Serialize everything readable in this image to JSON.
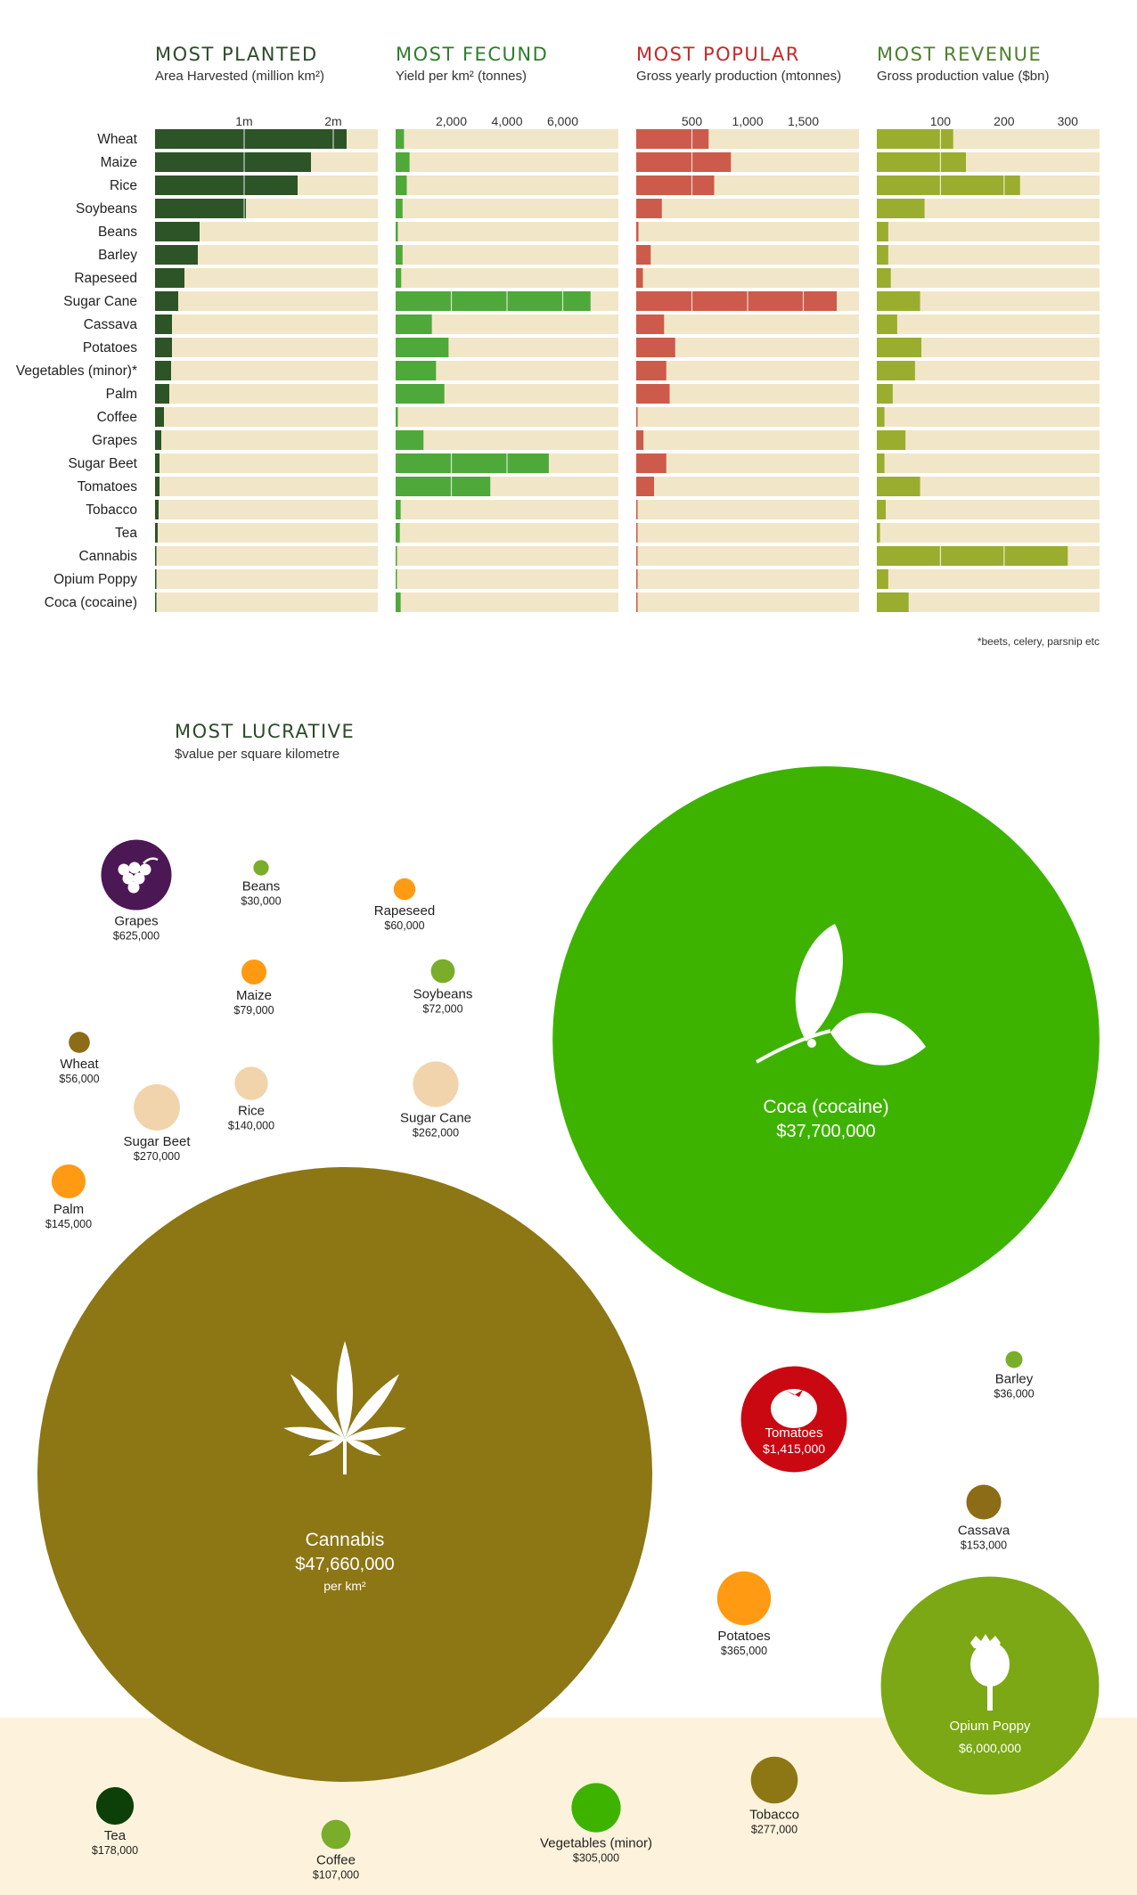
{
  "chart_data": [
    {
      "type": "bar",
      "orientation": "horizontal",
      "title": "MOST PLANTED",
      "subtitle": "Area Harvested (million km²)",
      "categories": [
        "Wheat",
        "Maize",
        "Rice",
        "Soybeans",
        "Beans",
        "Barley",
        "Rapeseed",
        "Sugar Cane",
        "Cassava",
        "Potatoes",
        "Vegetables (minor)*",
        "Palm",
        "Coffee",
        "Grapes",
        "Sugar Beet",
        "Tomatoes",
        "Tobacco",
        "Tea",
        "Cannabis",
        "Opium Poppy",
        "Coca (cocaine)"
      ],
      "values": [
        2.15,
        1.75,
        1.6,
        1.02,
        0.5,
        0.48,
        0.33,
        0.26,
        0.19,
        0.19,
        0.18,
        0.16,
        0.1,
        0.07,
        0.05,
        0.05,
        0.04,
        0.03,
        0.01,
        0.01,
        0.01
      ],
      "xticks": [
        1,
        2
      ],
      "xtick_labels": [
        "1m",
        "2m"
      ],
      "xlim": [
        0,
        2.5
      ],
      "colors": {
        "title": "#2d4a2a",
        "bar": "#2c5426",
        "track": "#f2e6c8"
      }
    },
    {
      "type": "bar",
      "orientation": "horizontal",
      "title": "MOST FECUND",
      "subtitle": "Yield per km² (tonnes)",
      "categories": [
        "Wheat",
        "Maize",
        "Rice",
        "Soybeans",
        "Beans",
        "Barley",
        "Rapeseed",
        "Sugar Cane",
        "Cassava",
        "Potatoes",
        "Vegetables (minor)*",
        "Palm",
        "Coffee",
        "Grapes",
        "Sugar Beet",
        "Tomatoes",
        "Tobacco",
        "Tea",
        "Cannabis",
        "Opium Poppy",
        "Coca (cocaine)"
      ],
      "values": [
        300,
        500,
        400,
        250,
        80,
        250,
        200,
        7000,
        1300,
        1900,
        1450,
        1750,
        80,
        1000,
        5500,
        3400,
        180,
        150,
        50,
        40,
        180
      ],
      "xticks": [
        2000,
        4000,
        6000
      ],
      "xtick_labels": [
        "2,000",
        "4,000",
        "6,000"
      ],
      "xlim": [
        0,
        8000
      ],
      "colors": {
        "title": "#2e7d2e",
        "bar": "#4ea83a",
        "track": "#f2e6c8"
      }
    },
    {
      "type": "bar",
      "orientation": "horizontal",
      "title": "MOST POPULAR",
      "subtitle": "Gross yearly production (mtonnes)",
      "categories": [
        "Wheat",
        "Maize",
        "Rice",
        "Soybeans",
        "Beans",
        "Barley",
        "Rapeseed",
        "Sugar Cane",
        "Cassava",
        "Potatoes",
        "Vegetables (minor)*",
        "Palm",
        "Coffee",
        "Grapes",
        "Sugar Beet",
        "Tomatoes",
        "Tobacco",
        "Tea",
        "Cannabis",
        "Opium Poppy",
        "Coca (cocaine)"
      ],
      "values": [
        650,
        850,
        700,
        230,
        20,
        130,
        60,
        1800,
        250,
        350,
        270,
        300,
        8,
        65,
        270,
        160,
        7,
        4,
        3,
        2,
        1
      ],
      "xticks": [
        500,
        1000,
        1500
      ],
      "xtick_labels": [
        "500",
        "1,000",
        "1,500"
      ],
      "xlim": [
        0,
        2000
      ],
      "colors": {
        "title": "#c22a2a",
        "bar": "#cc5b4b",
        "track": "#f2e6c8"
      }
    },
    {
      "type": "bar",
      "orientation": "horizontal",
      "title": "MOST REVENUE",
      "subtitle": "Gross production value ($bn)",
      "categories": [
        "Wheat",
        "Maize",
        "Rice",
        "Soybeans",
        "Beans",
        "Barley",
        "Rapeseed",
        "Sugar Cane",
        "Cassava",
        "Potatoes",
        "Vegetables (minor)*",
        "Palm",
        "Coffee",
        "Grapes",
        "Sugar Beet",
        "Tomatoes",
        "Tobacco",
        "Tea",
        "Cannabis",
        "Opium Poppy",
        "Coca (cocaine)"
      ],
      "values": [
        120,
        140,
        225,
        75,
        18,
        18,
        22,
        68,
        32,
        70,
        60,
        25,
        12,
        45,
        12,
        68,
        14,
        5,
        300,
        18,
        50
      ],
      "xticks": [
        100,
        200,
        300
      ],
      "xtick_labels": [
        "100",
        "200",
        "300"
      ],
      "xlim": [
        0,
        350
      ],
      "colors": {
        "title": "#4f7f2d",
        "bar": "#9aad2f",
        "track": "#f2e6c8"
      }
    },
    {
      "type": "bubble",
      "title": "MOST LUCRATIVE",
      "subtitle": "$value per square kilometre",
      "items": [
        {
          "name": "Grapes",
          "value": 625000,
          "label": "$625,000",
          "color": "#4b1855",
          "icon": "grapes-icon"
        },
        {
          "name": "Beans",
          "value": 30000,
          "label": "$30,000",
          "color": "#7aad29"
        },
        {
          "name": "Rapeseed",
          "value": 60000,
          "label": "$60,000",
          "color": "#ff9a12"
        },
        {
          "name": "Maize",
          "value": 79000,
          "label": "$79,000",
          "color": "#ff9a12"
        },
        {
          "name": "Soybeans",
          "value": 72000,
          "label": "$72,000",
          "color": "#7aad29"
        },
        {
          "name": "Wheat",
          "value": 56000,
          "label": "$56,000",
          "color": "#8c6c17"
        },
        {
          "name": "Rice",
          "value": 140000,
          "label": "$140,000",
          "color": "#f1d4ac"
        },
        {
          "name": "Sugar Cane",
          "value": 262000,
          "label": "$262,000",
          "color": "#f1d4ac"
        },
        {
          "name": "Sugar Beet",
          "value": 270000,
          "label": "$270,000",
          "color": "#f1d4ac"
        },
        {
          "name": "Palm",
          "value": 145000,
          "label": "$145,000",
          "color": "#ff9a12"
        },
        {
          "name": "Coca (cocaine)",
          "value": 37700000,
          "label": "$37,700,000",
          "color": "#3db300",
          "icon": "coca-leaf-icon"
        },
        {
          "name": "Cannabis",
          "value": 47660000,
          "label": "$47,660,000",
          "unit": "per km²",
          "color": "#8d7614",
          "icon": "cannabis-leaf-icon"
        },
        {
          "name": "Tomatoes",
          "value": 1415000,
          "label": "$1,415,000",
          "color": "#c90812",
          "icon": "tomato-icon"
        },
        {
          "name": "Barley",
          "value": 36000,
          "label": "$36,000",
          "color": "#7aad29"
        },
        {
          "name": "Cassava",
          "value": 153000,
          "label": "$153,000",
          "color": "#8c6c17"
        },
        {
          "name": "Potatoes",
          "value": 365000,
          "label": "$365,000",
          "color": "#ff9a12"
        },
        {
          "name": "Opium Poppy",
          "value": 6000000,
          "label": "$6,000,000",
          "color": "#7ba814",
          "icon": "poppy-pod-icon"
        },
        {
          "name": "Tea",
          "value": 178000,
          "label": "$178,000",
          "color": "#0d3f08"
        },
        {
          "name": "Coffee",
          "value": 107000,
          "label": "$107,000",
          "color": "#7aad29"
        },
        {
          "name": "Vegetables (minor)",
          "value": 305000,
          "label": "$305,000",
          "color": "#3db300"
        },
        {
          "name": "Tobacco",
          "value": 277000,
          "label": "$277,000",
          "color": "#8d7614"
        }
      ]
    }
  ],
  "footnote": "*beets, celery, parsnip etc",
  "colors": {
    "bottom_band": "#fdf3dc",
    "bar_track": "#f2e6c8"
  }
}
